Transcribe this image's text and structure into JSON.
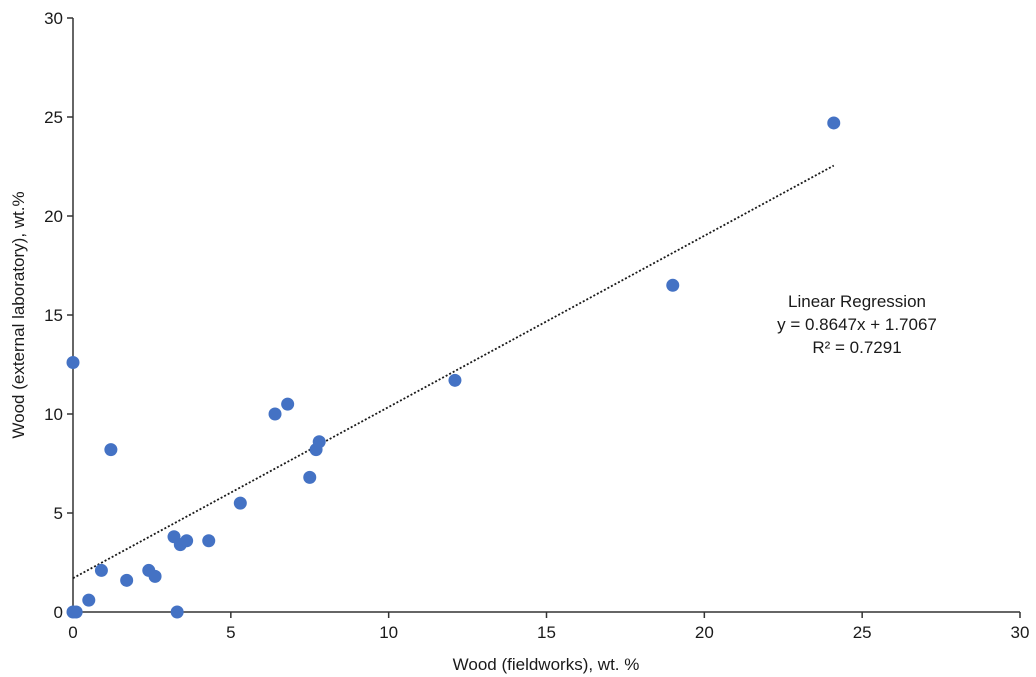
{
  "chart_data": {
    "type": "scatter",
    "xlabel": "Wood (fieldworks), wt. %",
    "ylabel": "Wood (external laboratory), wt.%",
    "xlim": [
      0,
      30
    ],
    "ylim": [
      0,
      30
    ],
    "x_ticks": [
      "0",
      "5",
      "10",
      "15",
      "20",
      "25",
      "30"
    ],
    "y_ticks": [
      "0",
      "5",
      "10",
      "15",
      "20",
      "25",
      "30"
    ],
    "grid": false,
    "colors": {
      "points": "#4472c4",
      "trendline": "#1a1a1a",
      "axes": "#333333"
    },
    "series": [
      {
        "points": [
          {
            "x": 0.0,
            "y": 0.0
          },
          {
            "x": 0.1,
            "y": 0.0
          },
          {
            "x": 0.0,
            "y": 12.6
          },
          {
            "x": 0.5,
            "y": 0.6
          },
          {
            "x": 0.9,
            "y": 2.1
          },
          {
            "x": 1.2,
            "y": 8.2
          },
          {
            "x": 1.7,
            "y": 1.6
          },
          {
            "x": 2.4,
            "y": 2.1
          },
          {
            "x": 2.6,
            "y": 1.8
          },
          {
            "x": 3.2,
            "y": 3.8
          },
          {
            "x": 3.3,
            "y": 0.0
          },
          {
            "x": 3.4,
            "y": 3.4
          },
          {
            "x": 3.6,
            "y": 3.6
          },
          {
            "x": 4.3,
            "y": 3.6
          },
          {
            "x": 5.3,
            "y": 5.5
          },
          {
            "x": 6.4,
            "y": 10.0
          },
          {
            "x": 6.8,
            "y": 10.5
          },
          {
            "x": 7.5,
            "y": 6.8
          },
          {
            "x": 7.7,
            "y": 8.2
          },
          {
            "x": 7.8,
            "y": 8.6
          },
          {
            "x": 12.1,
            "y": 11.7
          },
          {
            "x": 19.0,
            "y": 16.5
          },
          {
            "x": 24.1,
            "y": 24.7
          }
        ]
      }
    ],
    "trendline": {
      "slope": 0.8647,
      "intercept": 1.7067,
      "x_range": [
        0,
        24.1
      ],
      "style": "dotted"
    },
    "annotation": {
      "line1": "Linear Regression",
      "line2": "y = 0.8647x + 1.7067",
      "line3": "R² = 0.7291"
    }
  }
}
